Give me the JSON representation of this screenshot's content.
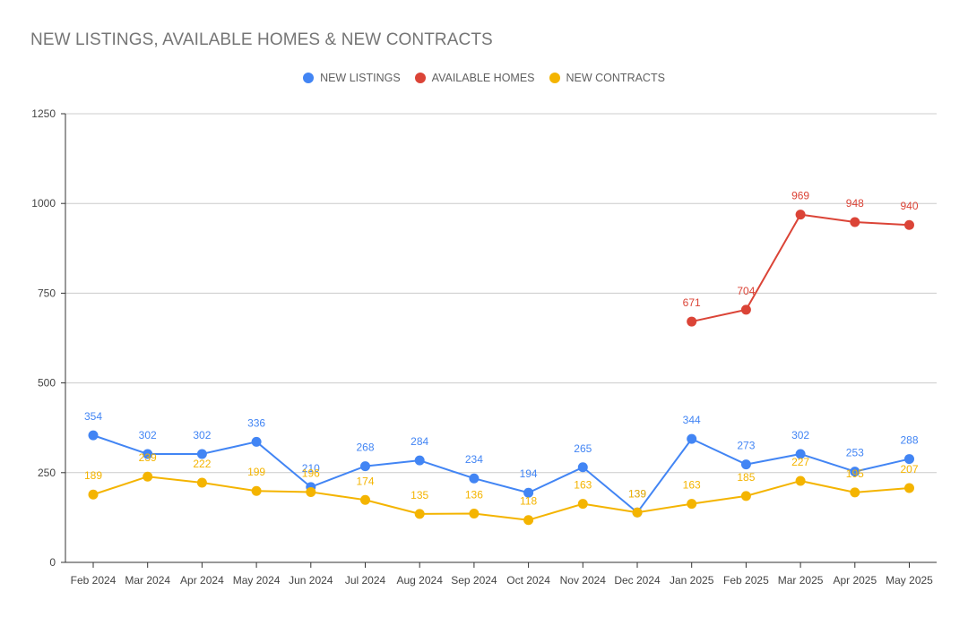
{
  "chart_data": {
    "type": "line",
    "title": "NEW LISTINGS, AVAILABLE HOMES & NEW CONTRACTS",
    "categories": [
      "Feb 2024",
      "Mar 2024",
      "Apr 2024",
      "May 2024",
      "Jun 2024",
      "Jul 2024",
      "Aug 2024",
      "Sep 2024",
      "Oct 2024",
      "Nov 2024",
      "Dec 2024",
      "Jan 2025",
      "Feb 2025",
      "Mar 2025",
      "Apr 2025",
      "May 2025"
    ],
    "ylim": [
      0,
      1250
    ],
    "yticks": [
      0,
      250,
      500,
      750,
      1000,
      1250
    ],
    "grid": true,
    "legend_position": "top-center",
    "series": [
      {
        "name": "NEW LISTINGS",
        "color": "#4285f4",
        "values": [
          354,
          302,
          302,
          336,
          210,
          268,
          284,
          234,
          194,
          265,
          139,
          344,
          273,
          302,
          253,
          288
        ]
      },
      {
        "name": "AVAILABLE HOMES",
        "color": "#db4437",
        "values": [
          null,
          null,
          null,
          null,
          null,
          null,
          null,
          null,
          null,
          null,
          null,
          671,
          704,
          969,
          948,
          940
        ]
      },
      {
        "name": "NEW CONTRACTS",
        "color": "#f4b400",
        "values": [
          189,
          239,
          222,
          199,
          196,
          174,
          135,
          136,
          118,
          163,
          139,
          163,
          185,
          227,
          195,
          207
        ]
      }
    ]
  }
}
